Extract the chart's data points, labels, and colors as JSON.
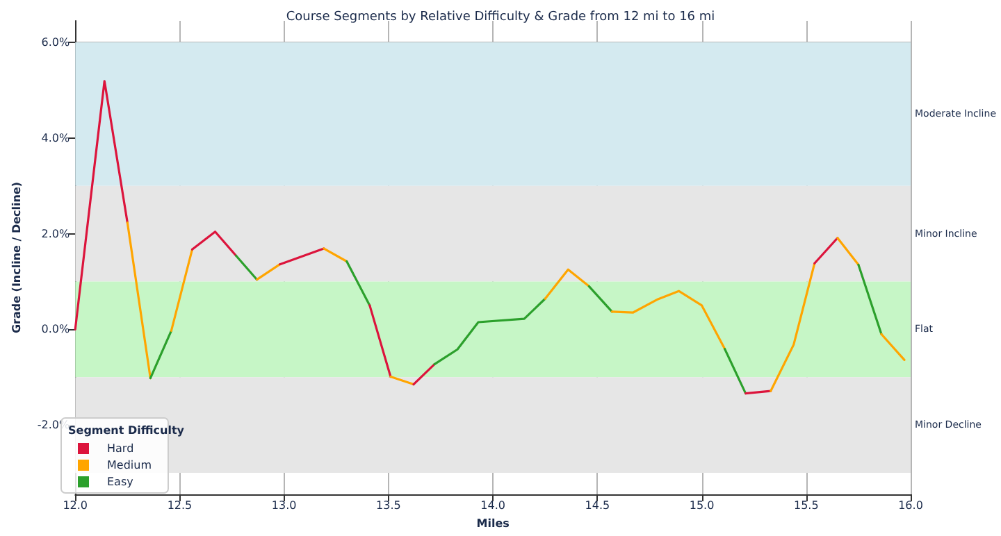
{
  "chart_data": {
    "type": "line",
    "title": "Course Segments by Relative Difficulty & Grade from 12 mi to 16 mi",
    "xlabel": "Miles",
    "ylabel": "Grade (Incline / Decline)",
    "legend_title": "Segment Difficulty",
    "legend": "bottom left",
    "grid": true,
    "line_style": "solid",
    "xlim": [
      12,
      16
    ],
    "xticks": [
      {
        "value": 12,
        "label": "12.0"
      },
      {
        "value": 12.5,
        "label": "12.5"
      },
      {
        "value": 13,
        "label": "13.0"
      },
      {
        "value": 13.5,
        "label": "13.5"
      },
      {
        "value": 14,
        "label": "14.0"
      },
      {
        "value": 14.5,
        "label": "14.5"
      },
      {
        "value": 15,
        "label": "15.0"
      },
      {
        "value": 15.5,
        "label": "15.5"
      },
      {
        "value": 16,
        "label": "16.0"
      }
    ],
    "ylim": [
      -3.45,
      6.45
    ],
    "yticks": [
      {
        "value": -2,
        "label": "-2.0%"
      },
      {
        "value": 0,
        "label": "0.0%"
      },
      {
        "value": 2,
        "label": "2.0%"
      },
      {
        "value": 4,
        "label": "4.0%"
      },
      {
        "value": 6,
        "label": "6.0%"
      }
    ],
    "bands": [
      {
        "axis": "y",
        "from": 3,
        "to": 6,
        "label": "Moderate Incline",
        "color": "#d4eaf0"
      },
      {
        "axis": "y",
        "from": 1,
        "to": 3,
        "label": "Minor Incline",
        "color": "#e6e6e6"
      },
      {
        "axis": "y",
        "from": -1,
        "to": 1,
        "label": "Flat",
        "color": "#c6f6c6"
      },
      {
        "axis": "y",
        "from": -3,
        "to": -1,
        "label": "Minor Decline",
        "color": "#e6e6e6"
      }
    ],
    "series": [
      {
        "name": "Hard",
        "color": "#dc143c",
        "x": [
          12.0,
          12.14,
          12.25
        ],
        "values": [
          0.0,
          5.19,
          2.23
        ]
      },
      {
        "name": "Medium",
        "color": "#ffa500",
        "x": [
          12.25,
          12.36
        ],
        "values": [
          2.23,
          -1.02
        ]
      },
      {
        "name": "Easy",
        "color": "#2ca02c",
        "x": [
          12.36,
          12.46
        ],
        "values": [
          -1.02,
          -0.03
        ]
      },
      {
        "color": "#ffa500",
        "x": [
          12.46,
          12.56
        ],
        "values": [
          -0.03,
          1.67
        ]
      },
      {
        "color": "#dc143c",
        "x": [
          12.56,
          12.67,
          12.77
        ],
        "values": [
          1.67,
          2.04,
          1.54
        ]
      },
      {
        "color": "#2ca02c",
        "x": [
          12.77,
          12.87
        ],
        "values": [
          1.54,
          1.04
        ]
      },
      {
        "color": "#ffa500",
        "x": [
          12.87,
          12.98
        ],
        "values": [
          1.04,
          1.36
        ]
      },
      {
        "color": "#dc143c",
        "x": [
          12.98,
          13.19
        ],
        "values": [
          1.36,
          1.69
        ]
      },
      {
        "color": "#ffa500",
        "x": [
          13.19,
          13.3
        ],
        "values": [
          1.69,
          1.42
        ]
      },
      {
        "color": "#2ca02c",
        "x": [
          13.3,
          13.41
        ],
        "values": [
          1.42,
          0.5
        ]
      },
      {
        "color": "#dc143c",
        "x": [
          13.41,
          13.51
        ],
        "values": [
          0.5,
          -0.99
        ]
      },
      {
        "color": "#ffa500",
        "x": [
          13.51,
          13.62
        ],
        "values": [
          -0.99,
          -1.15
        ]
      },
      {
        "color": "#dc143c",
        "x": [
          13.62,
          13.72
        ],
        "values": [
          -1.15,
          -0.73
        ]
      },
      {
        "color": "#2ca02c",
        "x": [
          13.72,
          13.83,
          13.93,
          14.15,
          14.25
        ],
        "values": [
          -0.73,
          -0.42,
          0.15,
          0.22,
          0.64
        ]
      },
      {
        "color": "#ffa500",
        "x": [
          14.25,
          14.36,
          14.46
        ],
        "values": [
          0.64,
          1.25,
          0.9
        ]
      },
      {
        "color": "#2ca02c",
        "x": [
          14.46,
          14.57
        ],
        "values": [
          0.9,
          0.37
        ]
      },
      {
        "color": "#ffa500",
        "x": [
          14.57,
          14.67,
          14.79,
          14.89,
          15.0,
          15.11
        ],
        "values": [
          0.37,
          0.35,
          0.63,
          0.8,
          0.5,
          -0.41
        ]
      },
      {
        "color": "#2ca02c",
        "x": [
          15.11,
          15.21
        ],
        "values": [
          -0.41,
          -1.34
        ]
      },
      {
        "color": "#dc143c",
        "x": [
          15.21,
          15.33
        ],
        "values": [
          -1.34,
          -1.29
        ]
      },
      {
        "color": "#ffa500",
        "x": [
          15.33,
          15.44,
          15.54
        ],
        "values": [
          -1.29,
          -0.32,
          1.38
        ]
      },
      {
        "color": "#dc143c",
        "x": [
          15.54,
          15.65
        ],
        "values": [
          1.38,
          1.91
        ]
      },
      {
        "color": "#ffa500",
        "x": [
          15.65,
          15.75
        ],
        "values": [
          1.91,
          1.35
        ]
      },
      {
        "color": "#2ca02c",
        "x": [
          15.75,
          15.86
        ],
        "values": [
          1.35,
          -0.1
        ]
      },
      {
        "color": "#ffa500",
        "x": [
          15.86,
          15.97
        ],
        "values": [
          -0.1,
          -0.64
        ]
      }
    ]
  }
}
